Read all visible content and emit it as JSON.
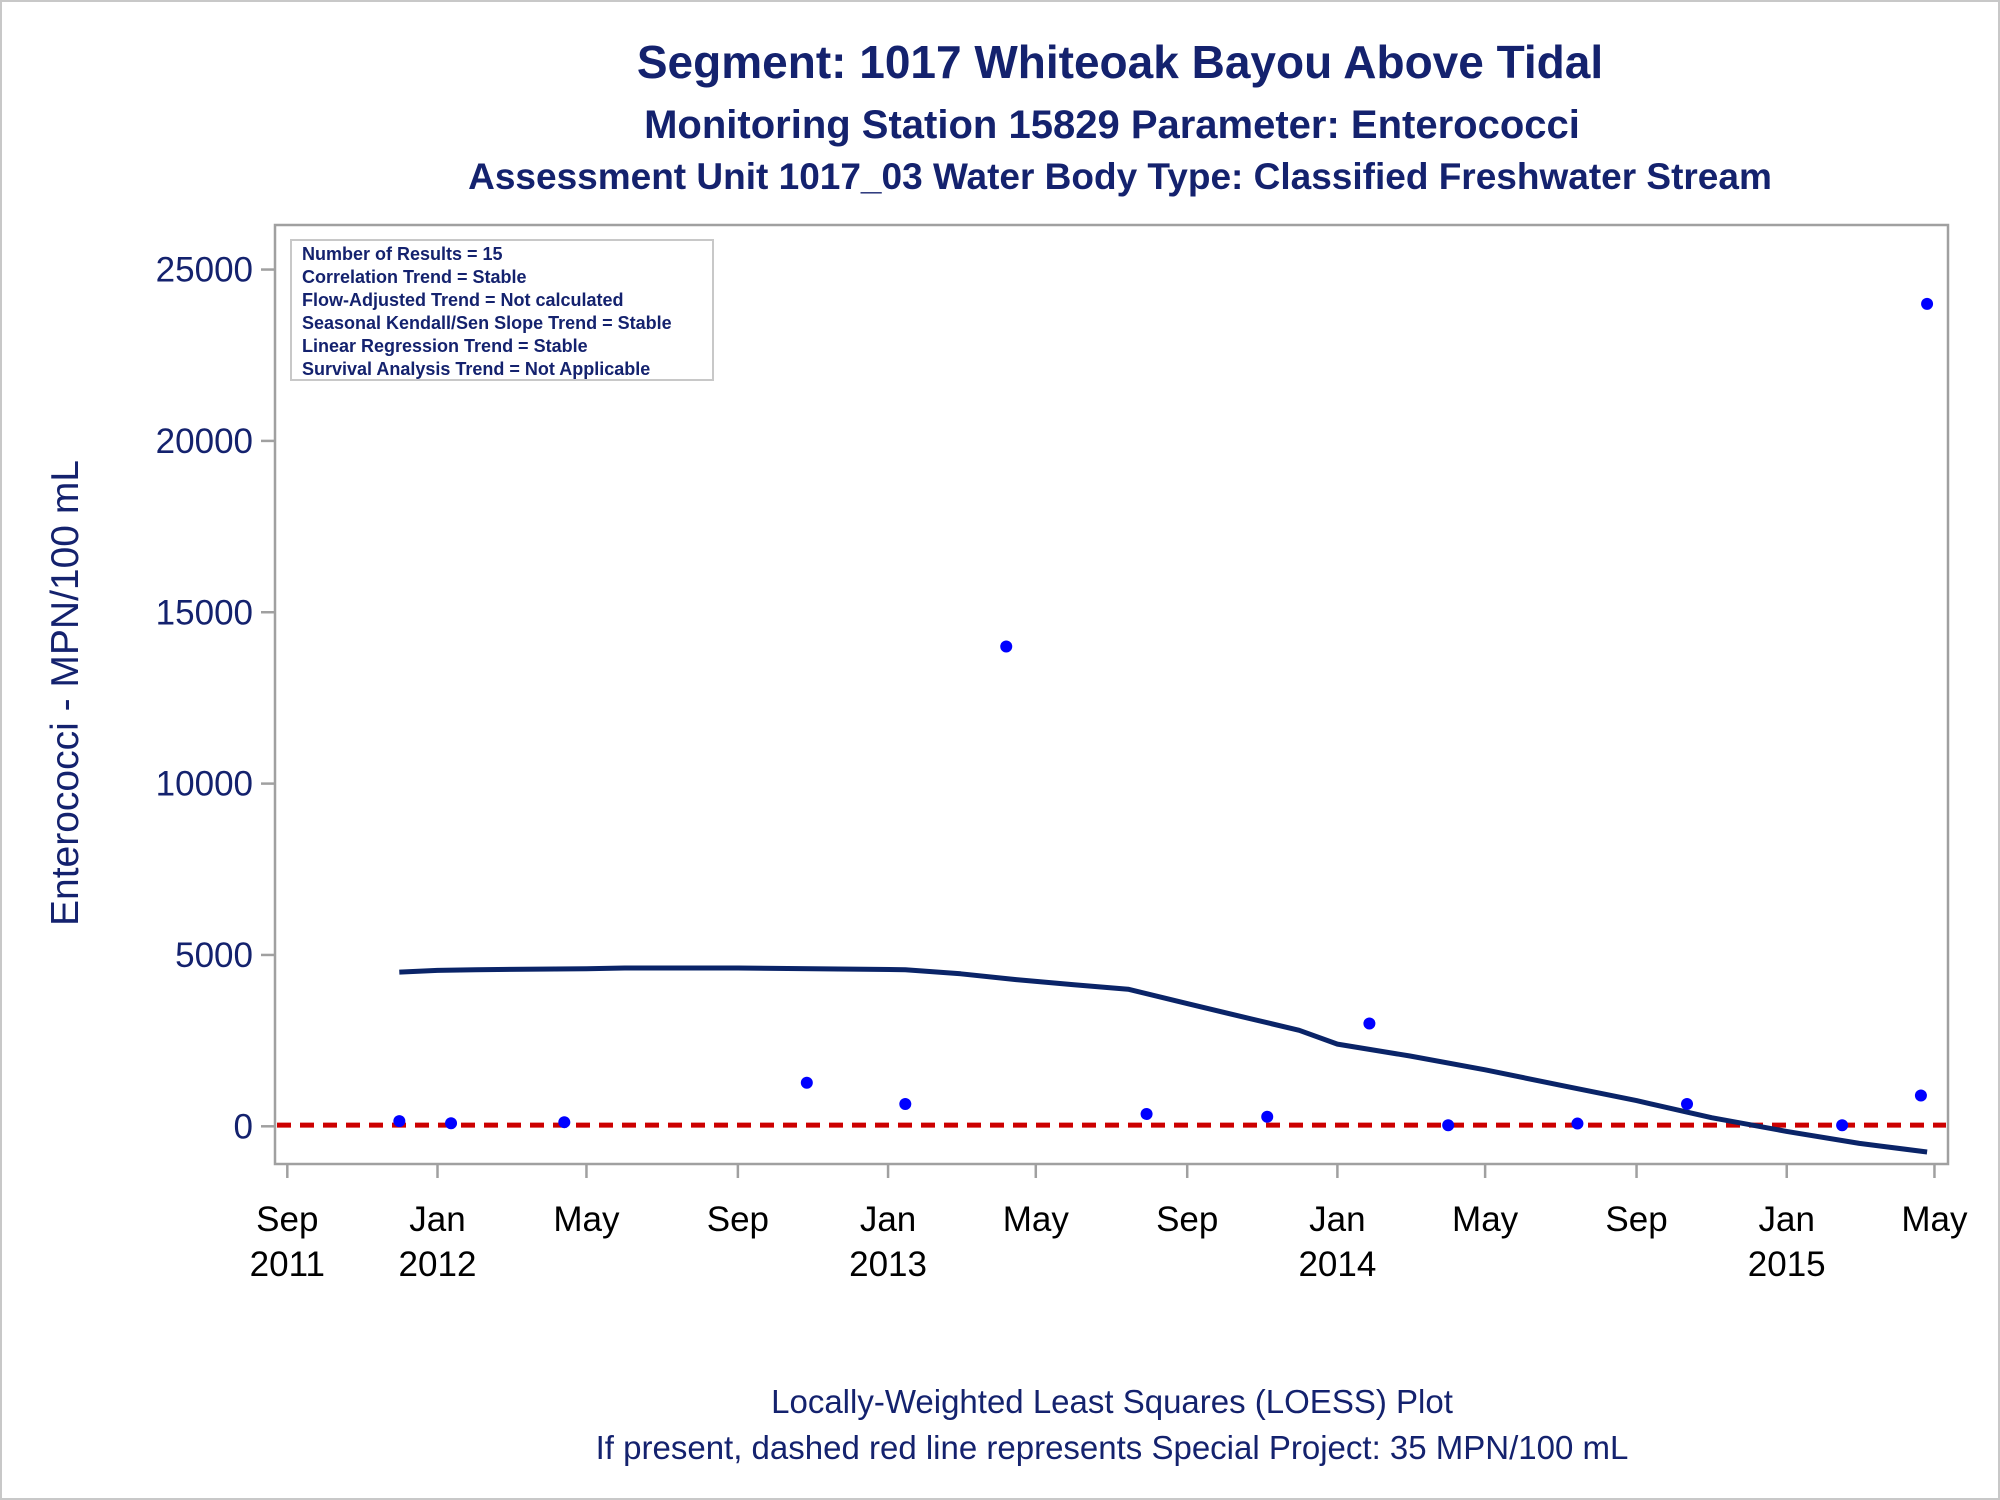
{
  "titles": [
    "Segment: 1017  Whiteoak Bayou Above Tidal",
    "Monitoring Station 15829 Parameter: Enterococci",
    "Assessment Unit 1017_03   Water Body Type: Classified Freshwater Stream"
  ],
  "footnotes": [
    "Locally-Weighted Least Squares (LOESS) Plot",
    "If present, dashed red line represents Special Project: 35 MPN/100 mL"
  ],
  "stats_box": [
    "Number of Results = 15",
    "Correlation Trend = Stable",
    "Flow-Adjusted Trend = Not calculated",
    "Seasonal Kendall/Sen Slope Trend = Stable",
    "Linear Regression Trend = Stable",
    "Survival Analysis Trend = Not Applicable"
  ],
  "colors": {
    "text": "#14226e",
    "points": "#0000ff",
    "loess_line": "#0a2468",
    "reference_line": "#cc0000",
    "frame": "#a0a0a0"
  },
  "chart_data": {
    "type": "scatter",
    "ylabel": "Enterococci - MPN/100 mL",
    "xlabel": "",
    "xlim": [
      "2011-08-22",
      "2015-05-12"
    ],
    "ylim": [
      -1100,
      26300
    ],
    "yticks": [
      0,
      5000,
      10000,
      15000,
      20000,
      25000
    ],
    "ytick_labels": [
      "0",
      "5000",
      "10000",
      "15000",
      "20000",
      "25000"
    ],
    "xticks": [
      {
        "date": "2011-09-01",
        "line1": "Sep",
        "line2": "2011"
      },
      {
        "date": "2012-01-01",
        "line1": "Jan",
        "line2": "2012"
      },
      {
        "date": "2012-05-01",
        "line1": "May",
        "line2": ""
      },
      {
        "date": "2012-09-01",
        "line1": "Sep",
        "line2": ""
      },
      {
        "date": "2013-01-01",
        "line1": "Jan",
        "line2": "2013"
      },
      {
        "date": "2013-05-01",
        "line1": "May",
        "line2": ""
      },
      {
        "date": "2013-09-01",
        "line1": "Sep",
        "line2": ""
      },
      {
        "date": "2014-01-01",
        "line1": "Jan",
        "line2": "2014"
      },
      {
        "date": "2014-05-01",
        "line1": "May",
        "line2": ""
      },
      {
        "date": "2014-09-01",
        "line1": "Sep",
        "line2": ""
      },
      {
        "date": "2015-01-01",
        "line1": "Jan",
        "line2": "2015"
      },
      {
        "date": "2015-05-01",
        "line1": "May",
        "line2": ""
      }
    ],
    "points": [
      {
        "x": "2011-12-01",
        "y": 150
      },
      {
        "x": "2012-01-12",
        "y": 90
      },
      {
        "x": "2012-04-13",
        "y": 120
      },
      {
        "x": "2012-10-27",
        "y": 1270
      },
      {
        "x": "2013-01-15",
        "y": 650
      },
      {
        "x": "2013-04-07",
        "y": 14000
      },
      {
        "x": "2013-07-30",
        "y": 360
      },
      {
        "x": "2013-11-05",
        "y": 280
      },
      {
        "x": "2014-01-27",
        "y": 3000
      },
      {
        "x": "2014-04-01",
        "y": 30
      },
      {
        "x": "2014-07-15",
        "y": 80
      },
      {
        "x": "2014-10-12",
        "y": 650
      },
      {
        "x": "2015-02-15",
        "y": 30
      },
      {
        "x": "2015-04-20",
        "y": 900
      },
      {
        "x": "2015-04-25",
        "y": 24000
      }
    ],
    "loess": [
      {
        "x": "2011-12-01",
        "y": 4500
      },
      {
        "x": "2012-01-01",
        "y": 4550
      },
      {
        "x": "2012-02-01",
        "y": 4570
      },
      {
        "x": "2012-05-01",
        "y": 4600
      },
      {
        "x": "2012-06-01",
        "y": 4620
      },
      {
        "x": "2012-09-01",
        "y": 4620
      },
      {
        "x": "2012-11-01",
        "y": 4600
      },
      {
        "x": "2013-01-15",
        "y": 4570
      },
      {
        "x": "2013-03-01",
        "y": 4450
      },
      {
        "x": "2013-04-15",
        "y": 4280
      },
      {
        "x": "2013-06-01",
        "y": 4130
      },
      {
        "x": "2013-07-15",
        "y": 4000
      },
      {
        "x": "2013-09-01",
        "y": 3580
      },
      {
        "x": "2013-10-15",
        "y": 3200
      },
      {
        "x": "2013-12-01",
        "y": 2800
      },
      {
        "x": "2014-01-01",
        "y": 2400
      },
      {
        "x": "2014-03-01",
        "y": 2050
      },
      {
        "x": "2014-05-01",
        "y": 1650
      },
      {
        "x": "2014-07-01",
        "y": 1200
      },
      {
        "x": "2014-09-01",
        "y": 750
      },
      {
        "x": "2014-11-01",
        "y": 250
      },
      {
        "x": "2015-01-01",
        "y": -150
      },
      {
        "x": "2015-03-01",
        "y": -500
      },
      {
        "x": "2015-04-25",
        "y": -750
      }
    ],
    "reference_line": {
      "y": 35
    }
  }
}
